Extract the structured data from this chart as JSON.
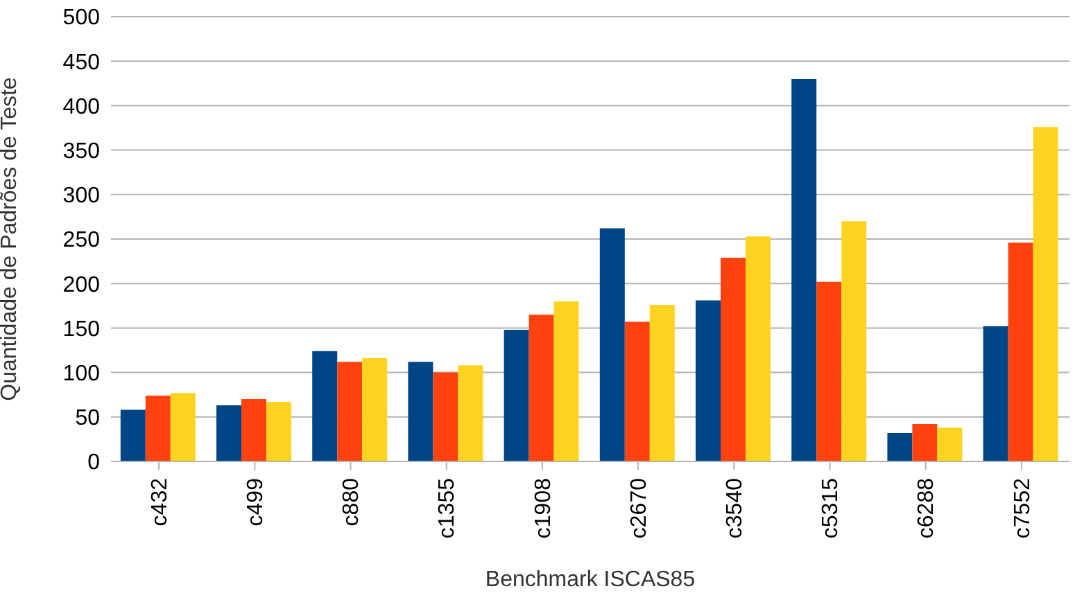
{
  "chart_data": {
    "type": "bar",
    "xlabel": "Benchmark ISCAS85",
    "ylabel": "Quantidade de Padrões de Teste",
    "categories": [
      "c432",
      "c499",
      "c880",
      "c1355",
      "c1908",
      "c2670",
      "c3540",
      "c5315",
      "c6288",
      "c7552"
    ],
    "series": [
      {
        "color": "#004586",
        "values": [
          58,
          63,
          124,
          112,
          148,
          262,
          181,
          430,
          32,
          152
        ]
      },
      {
        "color": "#ff420e",
        "values": [
          74,
          70,
          112,
          100,
          165,
          157,
          229,
          202,
          42,
          246
        ]
      },
      {
        "color": "#ffd320",
        "values": [
          77,
          67,
          116,
          108,
          180,
          176,
          253,
          270,
          38,
          376
        ]
      }
    ],
    "ylim": [
      0,
      500
    ],
    "yticks": [
      0,
      50,
      100,
      150,
      200,
      250,
      300,
      350,
      400,
      450,
      500
    ],
    "grid": "y"
  }
}
